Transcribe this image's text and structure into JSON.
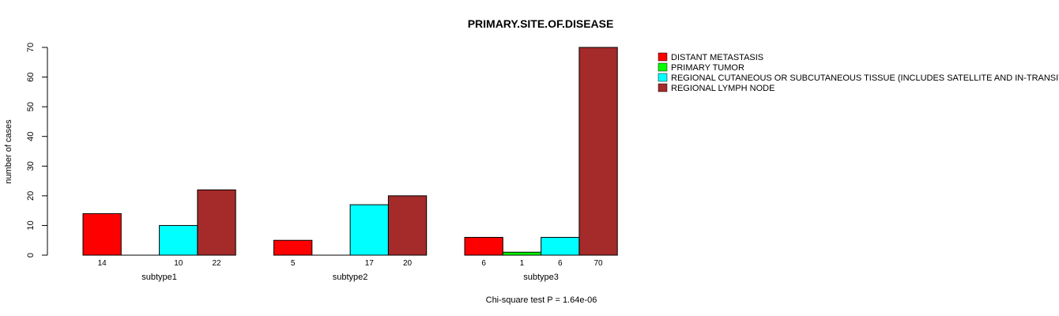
{
  "chart_data": {
    "type": "bar",
    "title": "PRIMARY.SITE.OF.DISEASE",
    "ylabel": "number of cases",
    "xlabel": "",
    "footnote": "Chi-square test P = 1.64e-06",
    "ylim": [
      0,
      70
    ],
    "yticks": [
      0,
      10,
      20,
      30,
      40,
      50,
      60,
      70
    ],
    "categories": [
      "subtype1",
      "subtype2",
      "subtype3"
    ],
    "series": [
      {
        "name": "DISTANT METASTASIS",
        "color": "#ff0000",
        "values": [
          14,
          5,
          6
        ],
        "labels": [
          "14",
          "5",
          "6"
        ]
      },
      {
        "name": "PRIMARY TUMOR",
        "color": "#00ff00",
        "values": [
          0,
          0,
          1
        ],
        "labels": [
          "",
          "",
          "1"
        ]
      },
      {
        "name": "REGIONAL CUTANEOUS OR SUBCUTANEOUS TISSUE (INCLUDES SATELLITE AND IN-TRANSIT METASTASIS)",
        "color": "#00ffff",
        "values": [
          10,
          17,
          6
        ],
        "labels": [
          "10",
          "17",
          "6"
        ]
      },
      {
        "name": "REGIONAL LYMPH NODE",
        "color": "#a52a2a",
        "values": [
          22,
          20,
          70
        ],
        "labels": [
          "22",
          "20",
          "70"
        ]
      }
    ],
    "legend_position": "top-right",
    "grid": false
  }
}
